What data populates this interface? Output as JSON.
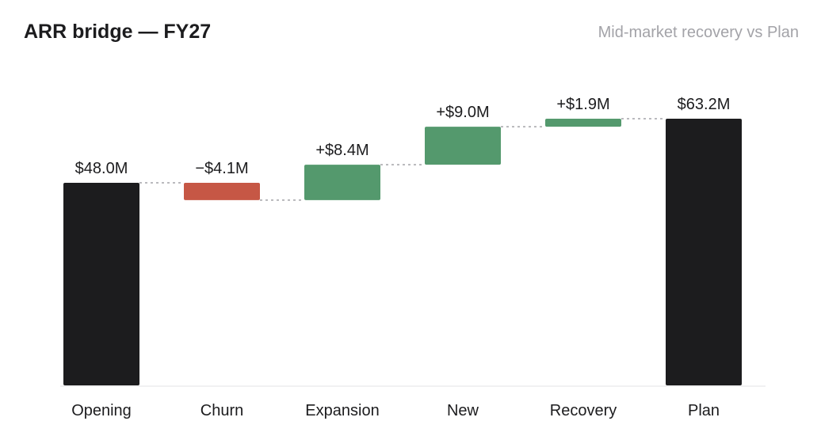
{
  "header": {
    "title": "ARR bridge — FY27",
    "subtitle": "Mid-market recovery vs Plan"
  },
  "colors": {
    "total": "#1c1c1e",
    "increase": "#54996d",
    "decrease": "#c65745",
    "connector": "#a3a3a8",
    "baseline": "#e3e3e6"
  },
  "chart_data": {
    "type": "bar",
    "subtype": "waterfall",
    "title": "ARR bridge — FY27",
    "subtitle": "Mid-market recovery vs Plan",
    "unit": "$M",
    "categories": [
      "Opening",
      "Churn",
      "Expansion",
      "New",
      "Recovery",
      "Plan"
    ],
    "steps": [
      {
        "category": "Opening",
        "kind": "total",
        "value": 48.0,
        "label": "$48.0M"
      },
      {
        "category": "Churn",
        "kind": "decrease",
        "value": -4.1,
        "label": "−$4.1M"
      },
      {
        "category": "Expansion",
        "kind": "increase",
        "value": 8.4,
        "label": "+$8.4M"
      },
      {
        "category": "New",
        "kind": "increase",
        "value": 9.0,
        "label": "+$9.0M"
      },
      {
        "category": "Recovery",
        "kind": "increase",
        "value": 1.9,
        "label": "+$1.9M"
      },
      {
        "category": "Plan",
        "kind": "total",
        "value": 63.2,
        "label": "$63.2M"
      }
    ],
    "ylim": [
      0,
      63.2
    ],
    "grid": false,
    "legend": "none",
    "connectors": true
  }
}
